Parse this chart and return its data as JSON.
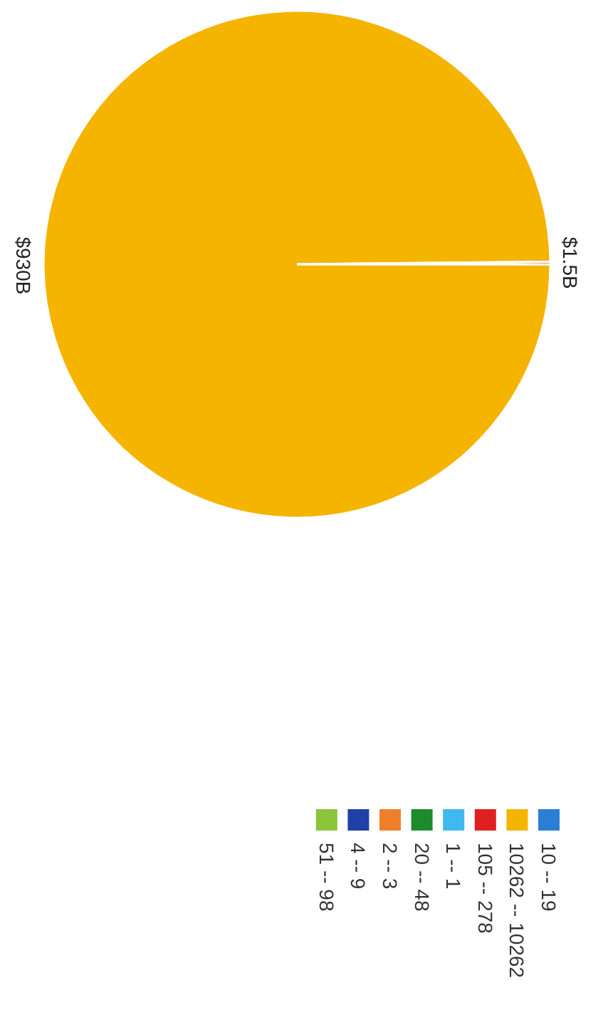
{
  "chart_data": {
    "type": "pie",
    "categories": [
      "10 -- 19",
      "10262 -- 10262",
      "105 -- 278",
      "1 -- 1",
      "20 -- 48",
      "2 -- 3",
      "4 -- 9",
      "51 -- 98"
    ],
    "values": [
      null,
      930,
      1.5,
      null,
      null,
      null,
      null,
      null
    ],
    "value_labels": [
      null,
      "$930B",
      "$1.5B",
      null,
      null,
      null,
      null,
      null
    ],
    "colors": [
      "#2a7fd4",
      "#f5b400",
      "#e02020",
      "#40b8f0",
      "#1e8a2e",
      "#f07f2a",
      "#2040a8",
      "#8cc43c"
    ],
    "legend": "bottom"
  }
}
